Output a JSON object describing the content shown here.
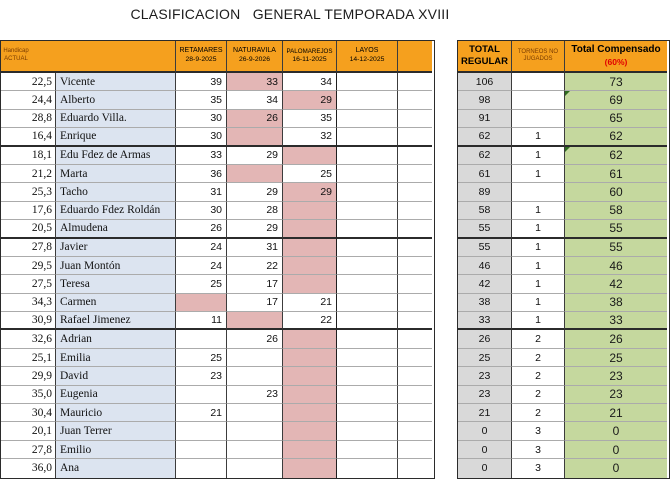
{
  "title": "CLASIFICACION   GENERAL TEMPORADA XVIII",
  "columns": {
    "handicap": {
      "line1": "Handicap",
      "line2": "ACTUAL"
    },
    "tournaments": [
      {
        "name": "RETAMARES",
        "date": "28-9-2025"
      },
      {
        "name": "NATURAVILA",
        "date": "26-9-2026"
      },
      {
        "name": "PALOMAREJOS",
        "date": "16-11-2025"
      },
      {
        "name": "LAYOS",
        "date": "14-12-2025"
      },
      {
        "name": "",
        "date": ""
      }
    ],
    "total_regular": {
      "line1": "TOTAL",
      "line2": "REGULAR"
    },
    "torneos_no_jugados": {
      "line1": "TORNEOS  NO",
      "line2": "JUGADOS"
    },
    "total_compensado": {
      "line1": "Total Compensado",
      "line2": "(60%)"
    }
  },
  "colors": {
    "header_orange": "#F5A01E",
    "highlight_pink": "#E3B6B5",
    "name_blue": "#DCE4F0",
    "total_gray": "#D9D9D9",
    "compensado_green": "#C5D89E",
    "compensado_header_blue": "#BBDCE7",
    "percent_red": "#e00000",
    "marker_green": "#2f6b1f"
  },
  "rows": [
    {
      "handicap": "22,5",
      "name": "Vicente",
      "scores": [
        "39",
        "33",
        "34",
        "",
        ""
      ],
      "pink": [
        false,
        true,
        false,
        false,
        false
      ],
      "total": "106",
      "not_played": "",
      "compensado": "73",
      "marker": false,
      "thick_after": false
    },
    {
      "handicap": "24,4",
      "name": "Alberto",
      "scores": [
        "35",
        "34",
        "29",
        "",
        ""
      ],
      "pink": [
        false,
        false,
        true,
        false,
        false
      ],
      "total": "98",
      "not_played": "",
      "compensado": "69",
      "marker": true,
      "thick_after": false
    },
    {
      "handicap": "28,8",
      "name": "Eduardo Villa.",
      "scores": [
        "30",
        "26",
        "35",
        "",
        ""
      ],
      "pink": [
        false,
        true,
        false,
        false,
        false
      ],
      "total": "91",
      "not_played": "",
      "compensado": "65",
      "marker": false,
      "thick_after": false
    },
    {
      "handicap": "16,4",
      "name": "Enrique",
      "scores": [
        "30",
        "",
        "32",
        "",
        ""
      ],
      "pink": [
        false,
        true,
        false,
        false,
        false
      ],
      "total": "62",
      "not_played": "1",
      "compensado": "62",
      "marker": false,
      "thick_after": true
    },
    {
      "handicap": "18,1",
      "name": "Edu Fdez de Armas",
      "scores": [
        "33",
        "29",
        "",
        "",
        ""
      ],
      "pink": [
        false,
        false,
        true,
        false,
        false
      ],
      "total": "62",
      "not_played": "1",
      "compensado": "62",
      "marker": true,
      "thick_after": false
    },
    {
      "handicap": "21,2",
      "name": "Marta",
      "scores": [
        "36",
        "",
        "25",
        "",
        ""
      ],
      "pink": [
        false,
        true,
        false,
        false,
        false
      ],
      "total": "61",
      "not_played": "1",
      "compensado": "61",
      "marker": false,
      "thick_after": false
    },
    {
      "handicap": "25,3",
      "name": "Tacho",
      "scores": [
        "31",
        "29",
        "29",
        "",
        ""
      ],
      "pink": [
        false,
        false,
        true,
        false,
        false
      ],
      "total": "89",
      "not_played": "",
      "compensado": "60",
      "marker": false,
      "thick_after": false
    },
    {
      "handicap": "17,6",
      "name": "Eduardo Fdez Roldán",
      "scores": [
        "30",
        "28",
        "",
        "",
        ""
      ],
      "pink": [
        false,
        false,
        true,
        false,
        false
      ],
      "total": "58",
      "not_played": "1",
      "compensado": "58",
      "marker": false,
      "thick_after": false
    },
    {
      "handicap": "20,5",
      "name": "Almudena",
      "scores": [
        "26",
        "29",
        "",
        "",
        ""
      ],
      "pink": [
        false,
        false,
        true,
        false,
        false
      ],
      "total": "55",
      "not_played": "1",
      "compensado": "55",
      "marker": false,
      "thick_after": true
    },
    {
      "handicap": "27,8",
      "name": "Javier",
      "scores": [
        "24",
        "31",
        "",
        "",
        ""
      ],
      "pink": [
        false,
        false,
        true,
        false,
        false
      ],
      "total": "55",
      "not_played": "1",
      "compensado": "55",
      "marker": false,
      "thick_after": false
    },
    {
      "handicap": "29,5",
      "name": "Juan Montón",
      "scores": [
        "24",
        "22",
        "",
        "",
        ""
      ],
      "pink": [
        false,
        false,
        true,
        false,
        false
      ],
      "total": "46",
      "not_played": "1",
      "compensado": "46",
      "marker": false,
      "thick_after": false
    },
    {
      "handicap": "27,5",
      "name": "Teresa",
      "scores": [
        "25",
        "17",
        "",
        "",
        ""
      ],
      "pink": [
        false,
        false,
        true,
        false,
        false
      ],
      "total": "42",
      "not_played": "1",
      "compensado": "42",
      "marker": false,
      "thick_after": false
    },
    {
      "handicap": "34,3",
      "name": "Carmen",
      "scores": [
        "",
        "17",
        "21",
        "",
        ""
      ],
      "pink": [
        true,
        false,
        false,
        false,
        false
      ],
      "total": "38",
      "not_played": "1",
      "compensado": "38",
      "marker": false,
      "thick_after": false
    },
    {
      "handicap": "30,9",
      "name": "Rafael Jimenez",
      "scores": [
        "11",
        "",
        "22",
        "",
        ""
      ],
      "pink": [
        false,
        true,
        false,
        false,
        false
      ],
      "total": "33",
      "not_played": "1",
      "compensado": "33",
      "marker": false,
      "thick_after": true
    },
    {
      "handicap": "32,6",
      "name": "Adrian",
      "scores": [
        "",
        "26",
        "",
        "",
        ""
      ],
      "pink": [
        false,
        false,
        true,
        false,
        false
      ],
      "total": "26",
      "not_played": "2",
      "compensado": "26",
      "marker": false,
      "thick_after": false
    },
    {
      "handicap": "25,1",
      "name": "Emilia",
      "scores": [
        "25",
        "",
        "",
        "",
        ""
      ],
      "pink": [
        false,
        false,
        true,
        false,
        false
      ],
      "total": "25",
      "not_played": "2",
      "compensado": "25",
      "marker": false,
      "thick_after": false
    },
    {
      "handicap": "29,9",
      "name": "David",
      "scores": [
        "23",
        "",
        "",
        "",
        ""
      ],
      "pink": [
        false,
        false,
        true,
        false,
        false
      ],
      "total": "23",
      "not_played": "2",
      "compensado": "23",
      "marker": false,
      "thick_after": false
    },
    {
      "handicap": "35,0",
      "name": "Eugenia",
      "scores": [
        "",
        "23",
        "",
        "",
        ""
      ],
      "pink": [
        false,
        false,
        true,
        false,
        false
      ],
      "total": "23",
      "not_played": "2",
      "compensado": "23",
      "marker": false,
      "thick_after": false
    },
    {
      "handicap": "30,4",
      "name": "Mauricio",
      "scores": [
        "21",
        "",
        "",
        "",
        ""
      ],
      "pink": [
        false,
        false,
        true,
        false,
        false
      ],
      "total": "21",
      "not_played": "2",
      "compensado": "21",
      "marker": false,
      "thick_after": false
    },
    {
      "handicap": "20,1",
      "name": "Juan Terrer",
      "scores": [
        "",
        "",
        "",
        "",
        ""
      ],
      "pink": [
        false,
        false,
        true,
        false,
        false
      ],
      "total": "0",
      "not_played": "3",
      "compensado": "0",
      "marker": false,
      "thick_after": false
    },
    {
      "handicap": "27,8",
      "name": "Emilio",
      "scores": [
        "",
        "",
        "",
        "",
        ""
      ],
      "pink": [
        false,
        false,
        true,
        false,
        false
      ],
      "total": "0",
      "not_played": "3",
      "compensado": "0",
      "marker": false,
      "thick_after": false
    },
    {
      "handicap": "36,0",
      "name": "Ana",
      "scores": [
        "",
        "",
        "",
        "",
        ""
      ],
      "pink": [
        false,
        false,
        true,
        false,
        false
      ],
      "total": "0",
      "not_played": "3",
      "compensado": "0",
      "marker": false,
      "thick_after": false
    }
  ]
}
